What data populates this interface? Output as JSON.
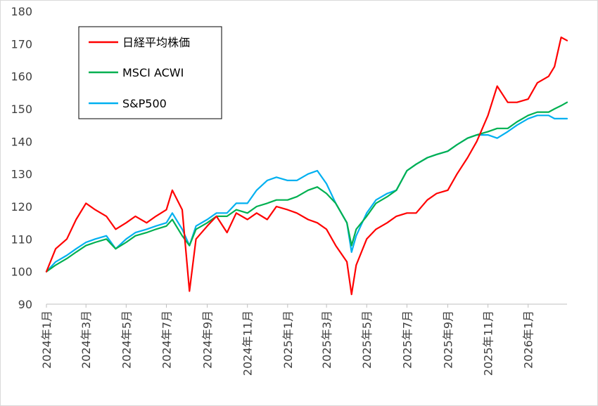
{
  "chart_data": {
    "type": "line",
    "title": "",
    "xlabel": "",
    "ylabel": "",
    "ylim": [
      90,
      180
    ],
    "yticks": [
      90,
      100,
      110,
      120,
      130,
      140,
      150,
      160,
      170,
      180
    ],
    "grid": false,
    "legend_position": "top-left",
    "x_start": "2024-01",
    "x_end": "2026-03",
    "xtick_labels": [
      "2024年1月",
      "2024年3月",
      "2024年5月",
      "2024年7月",
      "2024年9月",
      "2024年11月",
      "2025年1月",
      "2025年3月",
      "2025年5月",
      "2025年7月",
      "2025年9月",
      "2025年11月",
      "2026年1月"
    ],
    "xtick_dates": [
      "2024-01",
      "2024-03",
      "2024-05",
      "2024-07",
      "2024-09",
      "2024-11",
      "2025-01",
      "2025-03",
      "2025-05",
      "2025-07",
      "2025-09",
      "2025-11",
      "2026-01"
    ],
    "x": [
      "2024-01-01",
      "2024-01-15",
      "2024-02-01",
      "2024-02-15",
      "2024-03-01",
      "2024-03-15",
      "2024-04-01",
      "2024-04-15",
      "2024-05-01",
      "2024-05-15",
      "2024-06-01",
      "2024-06-15",
      "2024-07-01",
      "2024-07-10",
      "2024-07-25",
      "2024-08-05",
      "2024-08-15",
      "2024-09-01",
      "2024-09-15",
      "2024-10-01",
      "2024-10-15",
      "2024-11-01",
      "2024-11-15",
      "2024-12-01",
      "2024-12-15",
      "2025-01-01",
      "2025-01-15",
      "2025-02-01",
      "2025-02-15",
      "2025-03-01",
      "2025-03-15",
      "2025-04-01",
      "2025-04-08",
      "2025-04-15",
      "2025-05-01",
      "2025-05-15",
      "2025-06-01",
      "2025-06-15",
      "2025-07-01",
      "2025-07-15",
      "2025-08-01",
      "2025-08-15",
      "2025-09-01",
      "2025-09-15",
      "2025-10-01",
      "2025-10-15",
      "2025-11-01",
      "2025-11-15",
      "2025-12-01",
      "2025-12-15",
      "2026-01-01",
      "2026-01-15",
      "2026-02-01",
      "2026-02-10",
      "2026-02-20",
      "2026-03-01"
    ],
    "series": [
      {
        "name": "日経平均株価",
        "color": "#ff0000",
        "values": [
          100,
          107,
          110,
          116,
          121,
          119,
          117,
          113,
          115,
          117,
          115,
          117,
          119,
          125,
          119,
          94,
          110,
          114,
          117,
          112,
          118,
          116,
          118,
          116,
          120,
          119,
          118,
          116,
          115,
          113,
          108,
          103,
          93,
          102,
          110,
          113,
          115,
          117,
          118,
          118,
          122,
          124,
          125,
          130,
          135,
          140,
          148,
          157,
          152,
          152,
          153,
          158,
          160,
          163,
          172,
          171
        ]
      },
      {
        "name": "MSCI ACWI",
        "color": "#00b050",
        "values": [
          100,
          102,
          104,
          106,
          108,
          109,
          110,
          107,
          109,
          111,
          112,
          113,
          114,
          116,
          111,
          108,
          113,
          115,
          117,
          117,
          119,
          118,
          120,
          121,
          122,
          122,
          123,
          125,
          126,
          124,
          121,
          115,
          108,
          113,
          117,
          121,
          123,
          125,
          131,
          133,
          135,
          136,
          137,
          139,
          141,
          142,
          143,
          144,
          144,
          146,
          148,
          149,
          149,
          150,
          151,
          152
        ]
      },
      {
        "name": "S&P500",
        "color": "#00b0f0",
        "values": [
          100,
          103,
          105,
          107,
          109,
          110,
          111,
          107,
          110,
          112,
          113,
          114,
          115,
          118,
          113,
          108,
          114,
          116,
          118,
          118,
          121,
          121,
          125,
          128,
          129,
          128,
          128,
          130,
          131,
          127,
          121,
          115,
          106,
          111,
          118,
          122,
          124,
          125,
          131,
          133,
          135,
          136,
          137,
          139,
          141,
          142,
          142,
          141,
          143,
          145,
          147,
          148,
          148,
          147,
          147,
          147
        ]
      }
    ]
  }
}
